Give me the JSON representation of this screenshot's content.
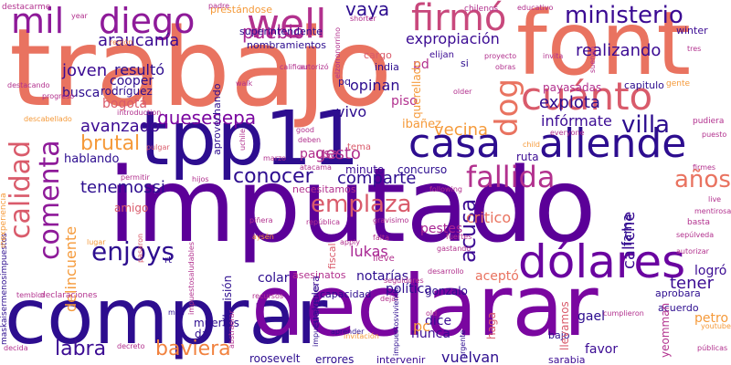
{
  "words": [
    {
      "text": "imputado",
      "color": "#5b0098",
      "vertical": false
    },
    {
      "text": "trabajo",
      "color": "#e97360",
      "vertical": false
    },
    {
      "text": "tpp11",
      "color": "#2d0d8f",
      "vertical": false
    },
    {
      "text": "comprar",
      "color": "#2d0d8f",
      "vertical": false
    },
    {
      "text": "declarar",
      "color": "#7a06a0",
      "vertical": false
    },
    {
      "text": "font",
      "color": "#e97360",
      "vertical": false
    },
    {
      "text": "casa",
      "color": "#2d0d8f",
      "vertical": false
    },
    {
      "text": "allende",
      "color": "#2d0d8f",
      "vertical": false
    },
    {
      "text": "well",
      "color": "#b2318e",
      "vertical": false
    },
    {
      "text": "diego",
      "color": "#8e1a99",
      "vertical": false
    },
    {
      "text": "mil",
      "color": "#8e1a99",
      "vertical": false
    },
    {
      "text": "firmó",
      "color": "#c8487c",
      "vertical": false
    },
    {
      "text": "cuánto",
      "color": "#d95b6b",
      "vertical": false
    },
    {
      "text": "ministerio",
      "color": "#3b0b93",
      "vertical": false
    },
    {
      "text": "dólares",
      "color": "#6a04a0",
      "vertical": false
    },
    {
      "text": "fallida",
      "color": "#b2318e",
      "vertical": false
    },
    {
      "text": "comenta",
      "color": "#8e1a99",
      "vertical": true
    },
    {
      "text": "calidad",
      "color": "#d95b6b",
      "vertical": true
    },
    {
      "text": "enjoys",
      "color": "#2d0d8f",
      "vertical": false
    },
    {
      "text": "dog",
      "color": "#e97360",
      "vertical": true
    },
    {
      "text": "villa",
      "color": "#2d0d8f",
      "vertical": false
    },
    {
      "text": "años",
      "color": "#e97360",
      "vertical": false
    },
    {
      "text": "emplaza",
      "color": "#d95b6b",
      "vertical": false
    },
    {
      "text": "vaya",
      "color": "#2d0d8f",
      "vertical": false
    },
    {
      "text": "pueblo",
      "color": "#a82593",
      "vertical": false
    },
    {
      "text": "araucanía",
      "color": "#3b0b93",
      "vertical": false
    },
    {
      "text": "realizando",
      "color": "#3b0b93",
      "vertical": false
    },
    {
      "text": "expropiación",
      "color": "#3b0b93",
      "vertical": false
    },
    {
      "text": "conocer",
      "color": "#2d0d8f",
      "vertical": false
    },
    {
      "text": "comparte",
      "color": "#2d0d8f",
      "vertical": false
    },
    {
      "text": "quesesepa",
      "color": "#7a06a0",
      "vertical": false
    },
    {
      "text": "avanzado",
      "color": "#3b0b93",
      "vertical": false
    },
    {
      "text": "brutal",
      "color": "#f59a3a",
      "vertical": false
    },
    {
      "text": "tenemossi",
      "color": "#2d0d8f",
      "vertical": false
    },
    {
      "text": "labra",
      "color": "#3b0b93",
      "vertical": false
    },
    {
      "text": "baviera",
      "color": "#f1823f",
      "vertical": false
    },
    {
      "text": "acusa",
      "color": "#3b0b93",
      "vertical": true
    },
    {
      "text": "explota",
      "color": "#2d0d8f",
      "vertical": false
    },
    {
      "text": "infórmate",
      "color": "#3b0b93",
      "vertical": false
    },
    {
      "text": "vecina",
      "color": "#f59a3a",
      "vertical": false
    },
    {
      "text": "caliche",
      "color": "#3b0b93",
      "vertical": true
    },
    {
      "text": "tener",
      "color": "#3b0b93",
      "vertical": false
    },
    {
      "text": "joven",
      "color": "#3b0b93",
      "vertical": false
    },
    {
      "text": "resultó",
      "color": "#2d0d8f",
      "vertical": false
    },
    {
      "text": "vivo",
      "color": "#2d0d8f",
      "vertical": false
    },
    {
      "text": "pd",
      "color": "#b2318e",
      "vertical": false
    },
    {
      "text": "gesto",
      "color": "#b2318e",
      "vertical": false
    },
    {
      "text": "pausa",
      "color": "#b2318e",
      "vertical": false
    },
    {
      "text": "critico",
      "color": "#e97360",
      "vertical": false
    },
    {
      "text": "opinan",
      "color": "#2d0d8f",
      "vertical": false
    },
    {
      "text": "delincuente",
      "color": "#f59a3a",
      "vertical": true
    },
    {
      "text": "colar",
      "color": "#2d0d8f",
      "vertical": false
    },
    {
      "text": "logró",
      "color": "#3b0b93",
      "vertical": false
    },
    {
      "text": "aceptó",
      "color": "#e97360",
      "vertical": false
    },
    {
      "text": "nunca",
      "color": "#3b0b93",
      "vertical": false
    },
    {
      "text": "dice",
      "color": "#3b0b93",
      "vertical": false
    },
    {
      "text": "pc",
      "color": "#f59a3a",
      "vertical": false
    },
    {
      "text": "favor",
      "color": "#3b0b93",
      "vertical": false
    },
    {
      "text": "roosevelt",
      "color": "#2d0d8f",
      "vertical": false
    },
    {
      "text": "vuelvan",
      "color": "#2d0d8f",
      "vertical": false
    },
    {
      "text": "gael",
      "color": "#2d0d8f",
      "vertical": false
    },
    {
      "text": "petro",
      "color": "#f59a3a",
      "vertical": false
    },
    {
      "text": "lukas",
      "color": "#a82593",
      "vertical": false
    },
    {
      "text": "política",
      "color": "#2d0d8f",
      "vertical": false
    },
    {
      "text": "notarías",
      "color": "#2d0d8f",
      "vertical": false
    },
    {
      "text": "busca",
      "color": "#2d0d8f",
      "vertical": false
    },
    {
      "text": "hablando",
      "color": "#2d0d8f",
      "vertical": false
    },
    {
      "text": "bogotá",
      "color": "#d95b6b",
      "vertical": false
    },
    {
      "text": "cooper",
      "color": "#2d0d8f",
      "vertical": false
    },
    {
      "text": "rodríguez",
      "color": "#2d0d8f",
      "vertical": false
    },
    {
      "text": "nombramientos",
      "color": "#2d0d8f",
      "vertical": false
    },
    {
      "text": "superintendente",
      "color": "#2d0d8f",
      "vertical": false
    },
    {
      "text": "payasadas",
      "color": "#b2318e",
      "vertical": false
    },
    {
      "text": "ruta",
      "color": "#3b0b93",
      "vertical": false
    },
    {
      "text": "piso",
      "color": "#b2318e",
      "vertical": false
    },
    {
      "text": "querellado",
      "color": "#f59a3a",
      "vertical": true
    },
    {
      "text": "ibañez",
      "color": "#f59a3a",
      "vertical": false
    },
    {
      "text": "fama",
      "color": "#2d0d8f",
      "vertical": false
    },
    {
      "text": "amigo",
      "color": "#d95b6b",
      "vertical": false
    },
    {
      "text": "pestes",
      "color": "#a82593",
      "vertical": false
    },
    {
      "text": "concurso",
      "color": "#2d0d8f",
      "vertical": false
    },
    {
      "text": "minuto",
      "color": "#3b0b93",
      "vertical": false
    },
    {
      "text": "necesitamos",
      "color": "#b2318e",
      "vertical": false
    },
    {
      "text": "asesinatos",
      "color": "#b2318e",
      "vertical": false
    },
    {
      "text": "capacidad",
      "color": "#2d0d8f",
      "vertical": false
    },
    {
      "text": "gonzalo",
      "color": "#2d0d8f",
      "vertical": false
    },
    {
      "text": "muertos",
      "color": "#2d0d8f",
      "vertical": false
    },
    {
      "text": "errores",
      "color": "#2d0d8f",
      "vertical": false
    },
    {
      "text": "intervenir",
      "color": "#3b0b93",
      "vertical": false
    },
    {
      "text": "sarabia",
      "color": "#3b0b93",
      "vertical": false
    },
    {
      "text": "acuerdo",
      "color": "#2d0d8f",
      "vertical": false
    },
    {
      "text": "bajo",
      "color": "#2d0d8f",
      "vertical": false
    },
    {
      "text": "aprobara",
      "color": "#2d0d8f",
      "vertical": false
    },
    {
      "text": "capitulo",
      "color": "#2d0d8f",
      "vertical": false
    },
    {
      "text": "winter",
      "color": "#3b0b93",
      "vertical": false
    },
    {
      "text": "india",
      "color": "#2d0d8f",
      "vertical": false
    },
    {
      "text": "pq",
      "color": "#2d0d8f",
      "vertical": false
    },
    {
      "text": "chilevisión",
      "color": "#2d0d8f",
      "vertical": true
    },
    {
      "text": "cualquiera",
      "color": "#3b0b93",
      "vertical": true
    },
    {
      "text": "fiscal",
      "color": "#d95b6b",
      "vertical": true
    },
    {
      "text": "aprovechando",
      "color": "#2d0d8f",
      "vertical": true
    },
    {
      "text": "prestándose",
      "color": "#f59a3a",
      "vertical": false
    },
    {
      "text": "maskaisermenosimpuestos",
      "color": "#2d0d8f",
      "vertical": true
    },
    {
      "text": "inexperiencia",
      "color": "#f59a3a",
      "vertical": true
    },
    {
      "text": "destacarme",
      "color": "#b2318e",
      "vertical": false
    },
    {
      "text": "cargo",
      "color": "#d95b6b",
      "vertical": false
    },
    {
      "text": "elijan",
      "color": "#3b0b93",
      "vertical": false
    },
    {
      "text": "si",
      "color": "#2d0d8f",
      "vertical": false
    },
    {
      "text": "chilenos",
      "color": "#b2318e",
      "vertical": false
    },
    {
      "text": "educativo",
      "color": "#b2318e",
      "vertical": false
    },
    {
      "text": "proyecto",
      "color": "#b2318e",
      "vertical": false
    },
    {
      "text": "obras",
      "color": "#b2318e",
      "vertical": false
    },
    {
      "text": "shorter",
      "color": "#b2318e",
      "vertical": false
    },
    {
      "text": "older",
      "color": "#b2318e",
      "vertical": false
    },
    {
      "text": "everyone",
      "color": "#b2318e",
      "vertical": false
    },
    {
      "text": "child",
      "color": "#f59a3a",
      "vertical": false
    },
    {
      "text": "following",
      "color": "#b2318e",
      "vertical": false
    },
    {
      "text": "declaraciones",
      "color": "#b2318e",
      "vertical": false
    },
    {
      "text": "temblor",
      "color": "#b2318e",
      "vertical": false
    },
    {
      "text": "introduction",
      "color": "#b2318e",
      "vertical": false
    },
    {
      "text": "región",
      "color": "#f1823f",
      "vertical": false
    },
    {
      "text": "year",
      "color": "#b2318e",
      "vertical": false
    },
    {
      "text": "descabellado",
      "color": "#f59a3a",
      "vertical": false
    },
    {
      "text": "progreso",
      "color": "#b2318e",
      "vertical": false
    },
    {
      "text": "pulgar",
      "color": "#d95b6b",
      "vertical": false
    },
    {
      "text": "permitir",
      "color": "#b2318e",
      "vertical": false
    },
    {
      "text": "hijos",
      "color": "#b2318e",
      "vertical": false
    },
    {
      "text": "good",
      "color": "#b2318e",
      "vertical": false
    },
    {
      "text": "deben",
      "color": "#b2318e",
      "vertical": false
    },
    {
      "text": "marzo",
      "color": "#b2318e",
      "vertical": false
    },
    {
      "text": "atacama",
      "color": "#b2318e",
      "vertical": false
    },
    {
      "text": "piñera",
      "color": "#b2318e",
      "vertical": false
    },
    {
      "text": "aysén",
      "color": "#f59a3a",
      "vertical": false
    },
    {
      "text": "república",
      "color": "#b2318e",
      "vertical": false
    },
    {
      "text": "gravisimo",
      "color": "#b2318e",
      "vertical": false
    },
    {
      "text": "apply",
      "color": "#b2318e",
      "vertical": false
    },
    {
      "text": "falta",
      "color": "#b2318e",
      "vertical": false
    },
    {
      "text": "lleve",
      "color": "#b2318e",
      "vertical": false
    },
    {
      "text": "fuertes",
      "color": "#b2318e",
      "vertical": false
    },
    {
      "text": "gastando",
      "color": "#b2318e",
      "vertical": false
    },
    {
      "text": "desarrollo",
      "color": "#b2318e",
      "vertical": false
    },
    {
      "text": "seguidores",
      "color": "#b2318e",
      "vertical": false
    },
    {
      "text": "dejar",
      "color": "#b2318e",
      "vertical": false
    },
    {
      "text": "old",
      "color": "#b2318e",
      "vertical": false
    },
    {
      "text": "cumplieron",
      "color": "#b2318e",
      "vertical": false
    },
    {
      "text": "invitación",
      "color": "#f59a3a",
      "vertical": false
    },
    {
      "text": "aprender",
      "color": "#2d0d8f",
      "vertical": false
    },
    {
      "text": "recursos",
      "color": "#b2318e",
      "vertical": false
    },
    {
      "text": "da",
      "color": "#2d0d8f",
      "vertical": false
    },
    {
      "text": "man",
      "color": "#2d0d8f",
      "vertical": false
    },
    {
      "text": "rt",
      "color": "#2d0d8f",
      "vertical": false
    },
    {
      "text": "lugar",
      "color": "#f59a3a",
      "vertical": false
    },
    {
      "text": "pasaron",
      "color": "#d95b6b",
      "vertical": true
    },
    {
      "text": "decida",
      "color": "#b2318e",
      "vertical": false
    },
    {
      "text": "decreto",
      "color": "#b2318e",
      "vertical": false
    },
    {
      "text": "urgente",
      "color": "#2d0d8f",
      "vertical": true
    },
    {
      "text": "haga",
      "color": "#d95b6b",
      "vertical": true
    },
    {
      "text": "yeomman",
      "color": "#b2318e",
      "vertical": true
    },
    {
      "text": "llevamos",
      "color": "#d95b6b",
      "vertical": true
    },
    {
      "text": "tema",
      "color": "#d95b6b",
      "vertical": false
    },
    {
      "text": "gente",
      "color": "#f59a3a",
      "vertical": false
    },
    {
      "text": "pudiera",
      "color": "#b2318e",
      "vertical": false
    },
    {
      "text": "puesto",
      "color": "#b2318e",
      "vertical": false
    },
    {
      "text": "basta",
      "color": "#b2318e",
      "vertical": false
    },
    {
      "text": "sepúlveda",
      "color": "#b2318e",
      "vertical": false
    },
    {
      "text": "autorizar",
      "color": "#b2318e",
      "vertical": false
    },
    {
      "text": "públicas",
      "color": "#b2318e",
      "vertical": false
    },
    {
      "text": "youtube",
      "color": "#f59a3a",
      "vertical": false
    },
    {
      "text": "live",
      "color": "#b2318e",
      "vertical": false
    },
    {
      "text": "tres",
      "color": "#b2318e",
      "vertical": false
    },
    {
      "text": "walk",
      "color": "#b2318e",
      "vertical": false
    },
    {
      "text": "autorizó",
      "color": "#b2318e",
      "vertical": false
    },
    {
      "text": "padre",
      "color": "#b2318e",
      "vertical": false
    },
    {
      "text": "firmes",
      "color": "#b2318e",
      "vertical": false
    },
    {
      "text": "invita",
      "color": "#b2318e",
      "vertical": false
    },
    {
      "text": "mentirosa",
      "color": "#b2318e",
      "vertical": false
    },
    {
      "text": "impuestosaludables",
      "color": "#b2318e",
      "vertical": true
    },
    {
      "text": "impuestosverdes",
      "color": "#2d0d8f",
      "vertical": true
    },
    {
      "text": "impuestosvivienda",
      "color": "#2d0d8f",
      "vertical": true
    },
    {
      "text": "elzorronorrino",
      "color": "#b2318e",
      "vertical": true
    },
    {
      "text": "abstraerar",
      "color": "#b2318e",
      "vertical": true
    },
    {
      "text": "calificar",
      "color": "#b2318e",
      "vertical": false
    },
    {
      "text": "destacando",
      "color": "#b2318e",
      "vertical": false
    },
    {
      "text": "uchile",
      "color": "#b2318e",
      "vertical": true
    },
    {
      "text": "suenan",
      "color": "#b2318e",
      "vertical": true
    }
  ]
}
